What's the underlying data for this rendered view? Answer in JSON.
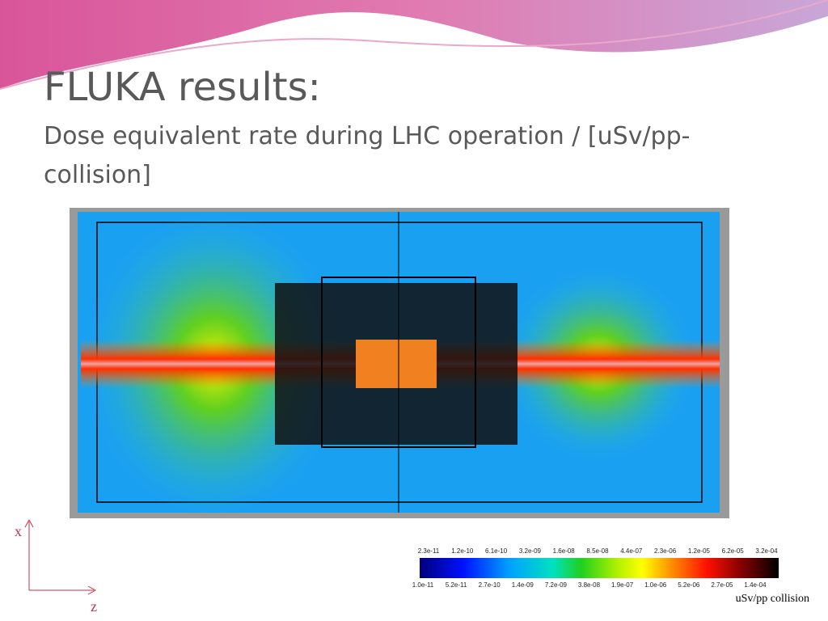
{
  "header": {
    "title": "FLUKA results:",
    "subtitle": "Dose equivalent rate during LHC operation / [uSv/pp-collision]"
  },
  "axes": {
    "x": "x",
    "z": "z"
  },
  "colorbar": {
    "top_labels": [
      "2.3e-11",
      "1.2e-10",
      "6.1e-10",
      "3.2e-09",
      "1.6e-08",
      "8.5e-08",
      "4.4e-07",
      "2.3e-06",
      "1.2e-05",
      "6.2e-05",
      "3.2e-04"
    ],
    "bottom_labels": [
      "1.0e-11",
      "5.2e-11",
      "2.7e-10",
      "1.4e-09",
      "7.2e-09",
      "3.8e-08",
      "1.9e-07",
      "1.0e-06",
      "5.2e-06",
      "2.7e-05",
      "1.4e-04"
    ],
    "unit": "uSv/pp collision"
  }
}
